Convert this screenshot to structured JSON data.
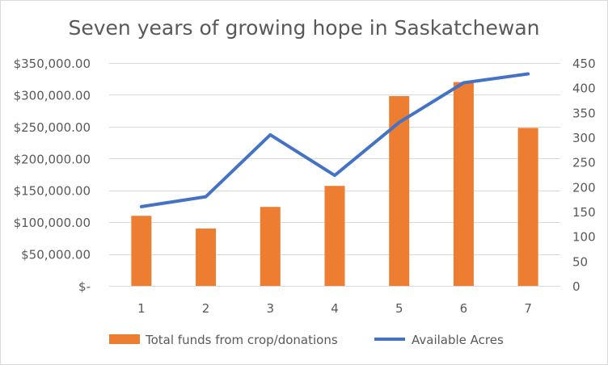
{
  "chart_data": {
    "type": "bar+line",
    "title": "Seven years of growing hope in Saskatchewan",
    "categories": [
      "1",
      "2",
      "3",
      "4",
      "5",
      "6",
      "7"
    ],
    "series": [
      {
        "name": "Total funds from crop/donations",
        "type": "bar",
        "axis": "left",
        "color": "#ed7d31",
        "values": [
          110000,
          90000,
          124000,
          157000,
          298000,
          320000,
          248000
        ]
      },
      {
        "name": "Available Acres",
        "type": "line",
        "axis": "right",
        "color": "#4472c4",
        "values": [
          160,
          180,
          305,
          223,
          330,
          410,
          428
        ]
      }
    ],
    "y_left": {
      "range": [
        0,
        350000
      ],
      "ticks": [
        0,
        50000,
        100000,
        150000,
        200000,
        250000,
        300000,
        350000
      ],
      "tick_labels": [
        "$-",
        "$50,000.00",
        "$100,000.00",
        "$150,000.00",
        "$200,000.00",
        "$250,000.00",
        "$300,000.00",
        "$350,000.00"
      ]
    },
    "y_right": {
      "range": [
        0,
        450
      ],
      "ticks": [
        0,
        50,
        100,
        150,
        200,
        250,
        300,
        350,
        400,
        450
      ],
      "tick_labels": [
        "0",
        "50",
        "100",
        "150",
        "200",
        "250",
        "300",
        "350",
        "400",
        "450"
      ]
    },
    "grid": true,
    "legend_position": "bottom"
  }
}
